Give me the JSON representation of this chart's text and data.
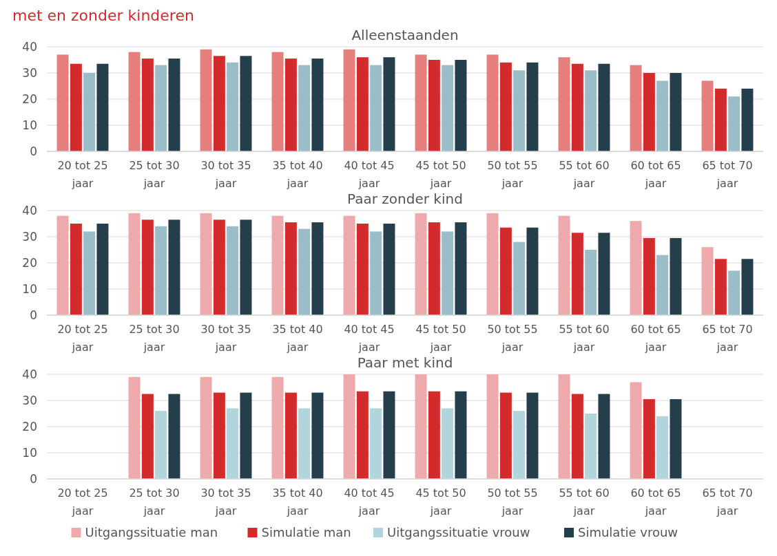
{
  "chart_data": [
    {
      "type": "bar",
      "title": "Alleenstaanden",
      "annotations": [
        "met en zonder kinderen"
      ],
      "categories": [
        "20 tot 25 jaar",
        "25 tot 30 jaar",
        "30 tot 35 jaar",
        "35 tot 40 jaar",
        "40 tot 45 jaar",
        "45 tot 50 jaar",
        "50 tot 55 jaar",
        "55 tot 60 jaar",
        "60 tot 65 jaar",
        "65 tot 70 jaar"
      ],
      "ylim": [
        0,
        40
      ],
      "yticks": [
        0,
        10,
        20,
        30,
        40
      ],
      "grid": "y",
      "legend": false,
      "series": [
        {
          "color": "#e57f7d",
          "values": [
            37,
            38,
            39,
            38,
            39,
            37,
            37,
            36,
            33,
            27
          ]
        },
        {
          "color": "#d22b2b",
          "values": [
            33.5,
            35.5,
            36.5,
            35.5,
            36,
            35,
            34,
            33.5,
            30,
            24
          ]
        },
        {
          "color": "#99bec9",
          "values": [
            30,
            33,
            34,
            33,
            33,
            33,
            31,
            31,
            27,
            21
          ]
        },
        {
          "color": "#243f4b",
          "values": [
            33.5,
            35.5,
            36.5,
            35.5,
            36,
            35,
            34,
            33.5,
            30,
            24
          ]
        }
      ]
    },
    {
      "type": "bar",
      "title": "Paar zonder kind",
      "categories": [
        "20 tot 25 jaar",
        "25 tot 30 jaar",
        "30 tot 35 jaar",
        "35 tot 40 jaar",
        "40 tot 45 jaar",
        "45 tot 50 jaar",
        "50 tot 55 jaar",
        "55 tot 60 jaar",
        "60 tot 65 jaar",
        "65 tot 70 jaar"
      ],
      "ylim": [
        0,
        40
      ],
      "yticks": [
        0,
        10,
        20,
        30,
        40
      ],
      "grid": "y",
      "legend": false,
      "series": [
        {
          "color": "#eeaaaa",
          "values": [
            38,
            39,
            39,
            38,
            38,
            39,
            39,
            38,
            36,
            26
          ]
        },
        {
          "color": "#d22b2b",
          "values": [
            35,
            36.5,
            36.5,
            35.5,
            35,
            35.5,
            33.5,
            31.5,
            29.5,
            21.5
          ]
        },
        {
          "color": "#99bec9",
          "values": [
            32,
            34,
            34,
            33,
            32,
            32,
            28,
            25,
            23,
            17
          ]
        },
        {
          "color": "#243f4b",
          "values": [
            35,
            36.5,
            36.5,
            35.5,
            35,
            35.5,
            33.5,
            31.5,
            29.5,
            21.5
          ]
        }
      ]
    },
    {
      "type": "bar",
      "title": "Paar met kind",
      "categories": [
        "20 tot 25 jaar",
        "25 tot 30 jaar",
        "30 tot 35 jaar",
        "35 tot 40 jaar",
        "40 tot 45 jaar",
        "45 tot 50 jaar",
        "50 tot 55 jaar",
        "55 tot 60 jaar",
        "60 tot 65 jaar",
        "65 tot 70 jaar"
      ],
      "ylim": [
        0,
        40
      ],
      "yticks": [
        0,
        10,
        20,
        30,
        40
      ],
      "grid": "y",
      "legend": "bottom",
      "series": [
        {
          "name": "Uitgangssituatie man",
          "color": "#eeaaaa",
          "values": [
            null,
            39,
            39,
            39,
            40,
            40,
            40,
            40,
            37,
            null
          ]
        },
        {
          "name": "Simulatie man",
          "color": "#d22b2b",
          "values": [
            null,
            32.5,
            33,
            33,
            33.5,
            33.5,
            33,
            32.5,
            30.5,
            null
          ]
        },
        {
          "name": "Uitgangssituatie vrouw",
          "color": "#b0d5dc",
          "values": [
            null,
            26,
            27,
            27,
            27,
            27,
            26,
            25,
            24,
            null
          ]
        },
        {
          "name": "Simulatie vrouw",
          "color": "#243f4b",
          "values": [
            null,
            32.5,
            33,
            33,
            33.5,
            33.5,
            33,
            32.5,
            30.5,
            null
          ]
        }
      ]
    }
  ]
}
